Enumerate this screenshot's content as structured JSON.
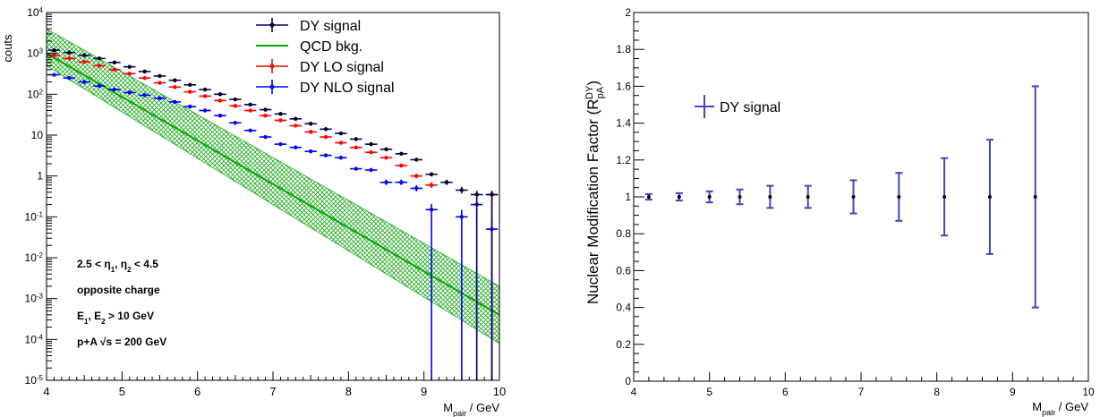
{
  "chart_data": [
    {
      "type": "scatter",
      "yscale": "log",
      "xlim": [
        4,
        10
      ],
      "ylim": [
        1e-05,
        10000
      ],
      "xlabel": "M",
      "xlabel_sub": "pair",
      "xlabel_unit": " / GeV",
      "ylabel": "couts",
      "x_ticks": [
        "4",
        "5",
        "6",
        "7",
        "8",
        "9",
        "10"
      ],
      "y_ticks": [
        {
          "base": "10",
          "exp": "4",
          "v": 10000
        },
        {
          "base": "10",
          "exp": "3",
          "v": 1000
        },
        {
          "base": "10",
          "exp": "2",
          "v": 100
        },
        {
          "base": "10",
          "exp": "",
          "v": 10
        },
        {
          "base": "1",
          "exp": "",
          "v": 1
        },
        {
          "base": "10",
          "exp": "-1",
          "v": 0.1
        },
        {
          "base": "10",
          "exp": "-2",
          "v": 0.01
        },
        {
          "base": "10",
          "exp": "-3",
          "v": 0.001
        },
        {
          "base": "10",
          "exp": "-4",
          "v": 0.0001
        },
        {
          "base": "10",
          "exp": "-5",
          "v": 1e-05
        }
      ],
      "legend_position": "top-right",
      "series": [
        {
          "name": "DY signal",
          "color": "#000080",
          "marker": "#000000",
          "x": [
            4.1,
            4.3,
            4.5,
            4.7,
            4.9,
            5.1,
            5.3,
            5.5,
            5.7,
            5.9,
            6.1,
            6.3,
            6.5,
            6.7,
            6.9,
            7.1,
            7.3,
            7.5,
            7.7,
            7.9,
            8.1,
            8.3,
            8.5,
            8.7,
            8.9,
            9.1,
            9.3,
            9.5,
            9.7,
            9.9
          ],
          "y": [
            1200,
            1050,
            900,
            750,
            600,
            470,
            360,
            280,
            220,
            170,
            130,
            100,
            75,
            56,
            42,
            33,
            25,
            19,
            14,
            11,
            8,
            6,
            4.5,
            3.5,
            2.5,
            1.1,
            0.7,
            0.45,
            0.35,
            0.35
          ]
        },
        {
          "name": "QCD bkg.",
          "color": "#00aa00",
          "x": [
            4,
            10
          ],
          "y": [
            1000,
            0.0004
          ],
          "band_low": [
            500,
            8e-05
          ],
          "band_high": [
            4000,
            0.002
          ]
        },
        {
          "name": "DY LO signal",
          "color": "#ff0000",
          "marker": "#ff0000",
          "x": [
            4.1,
            4.3,
            4.5,
            4.7,
            4.9,
            5.1,
            5.3,
            5.5,
            5.7,
            5.9,
            6.1,
            6.3,
            6.5,
            6.7,
            6.9,
            7.1,
            7.3,
            7.5,
            7.7,
            7.9,
            8.1,
            8.3,
            8.5,
            8.7,
            8.9,
            9.1,
            9.9
          ],
          "y": [
            900,
            750,
            620,
            500,
            400,
            320,
            250,
            190,
            150,
            115,
            90,
            70,
            52,
            40,
            30,
            23,
            17,
            12,
            9,
            6.5,
            5,
            3.8,
            2.8,
            1.8,
            1,
            0.6,
            0.35
          ]
        },
        {
          "name": "DY NLO signal",
          "color": "#0000ff",
          "marker": "#0000ff",
          "x": [
            4.1,
            4.3,
            4.5,
            4.7,
            4.9,
            5.1,
            5.3,
            5.5,
            5.7,
            5.9,
            6.1,
            6.3,
            6.5,
            6.7,
            6.9,
            7.1,
            7.3,
            7.5,
            7.7,
            7.9,
            8.1,
            8.3,
            8.5,
            8.7,
            8.9,
            9.1,
            9.5,
            9.7,
            9.9
          ],
          "y": [
            300,
            250,
            200,
            160,
            130,
            110,
            95,
            80,
            65,
            50,
            40,
            30,
            20,
            13,
            9,
            6,
            5,
            4,
            3.2,
            2.8,
            1.5,
            1.4,
            0.7,
            0.7,
            0.5,
            0.15,
            0.1,
            0.2,
            0.05
          ]
        }
      ],
      "annotations": [
        {
          "parts": [
            [
              "2.5 < η",
              ""
            ],
            [
              "1",
              "sub"
            ],
            [
              ", η",
              ""
            ],
            [
              "2",
              "sub"
            ],
            [
              " < 4.5",
              ""
            ]
          ]
        },
        {
          "parts": [
            [
              "opposite charge",
              ""
            ]
          ]
        },
        {
          "parts": [
            [
              "E",
              ""
            ],
            [
              "1",
              "sub"
            ],
            [
              ", E",
              ""
            ],
            [
              "2",
              "sub"
            ],
            [
              " > 10 GeV",
              ""
            ]
          ]
        },
        {
          "parts": [
            [
              "p+A  √s = 200 GeV",
              ""
            ]
          ]
        }
      ]
    },
    {
      "type": "scatter",
      "xlim": [
        4,
        10
      ],
      "ylim": [
        0,
        2
      ],
      "xlabel": "M",
      "xlabel_sub": "pair",
      "xlabel_unit": " / GeV",
      "ylabel": "Nuclear Modification Factor (R",
      "ylabel_sub": "pA",
      "ylabel_sup": "DY",
      "ylabel_end": ")",
      "x_ticks": [
        "4",
        "5",
        "6",
        "7",
        "8",
        "9",
        "10"
      ],
      "y_ticks": [
        "0",
        "0.2",
        "0.4",
        "0.6",
        "0.8",
        "1",
        "1.2",
        "1.4",
        "1.6",
        "1.8",
        "2"
      ],
      "legend_position": "top-left",
      "series": [
        {
          "name": "DY signal",
          "color": "#4444bb",
          "marker": "#000000",
          "x": [
            4.2,
            4.6,
            5.0,
            5.4,
            5.8,
            6.3,
            6.9,
            7.5,
            8.1,
            8.7,
            9.3
          ],
          "y": [
            1,
            1,
            1,
            1,
            1,
            1,
            1,
            1,
            1,
            1,
            1
          ],
          "yerr": [
            0.015,
            0.02,
            0.03,
            0.04,
            0.06,
            0.06,
            0.09,
            0.13,
            0.21,
            0.31,
            0.6
          ]
        }
      ]
    }
  ]
}
